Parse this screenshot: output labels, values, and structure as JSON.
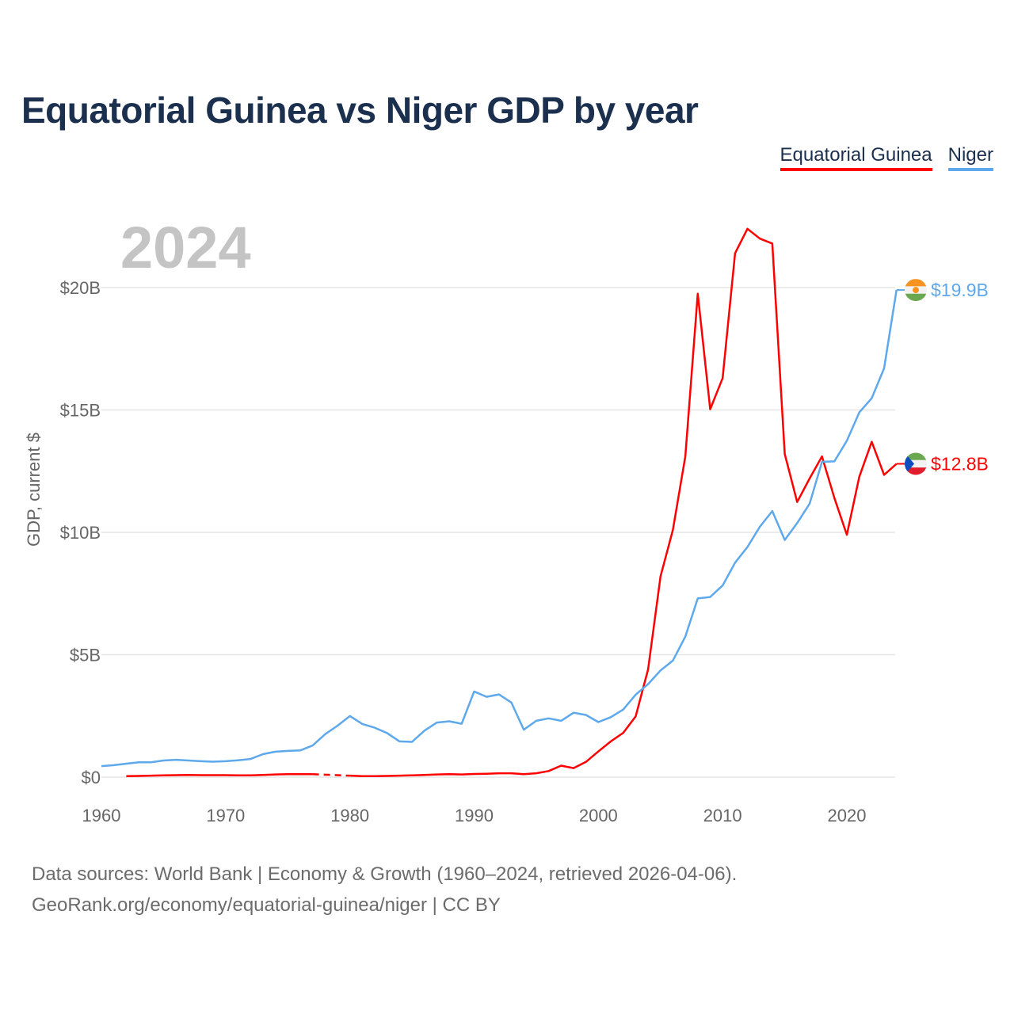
{
  "chart_data": {
    "type": "line",
    "title": "Equatorial Guinea vs Niger GDP by year",
    "ylabel": "GDP, current $",
    "xlabel": "",
    "year_label": "2024",
    "xlim": [
      1960,
      2024
    ],
    "ylim": [
      0,
      22.5
    ],
    "x_ticks": [
      1960,
      1970,
      1980,
      1990,
      2000,
      2010,
      2020
    ],
    "y_ticks": [
      {
        "v": 0,
        "label": "$0"
      },
      {
        "v": 5,
        "label": "$5B"
      },
      {
        "v": 10,
        "label": "$10B"
      },
      {
        "v": 15,
        "label": "$15B"
      },
      {
        "v": 20,
        "label": "$20B"
      }
    ],
    "grid": true,
    "legend_placement": "top-right",
    "x_start": 1960,
    "series": [
      {
        "name": "Equatorial Guinea",
        "color": "#ff0000",
        "end_label": "$12.8B",
        "values": [
          null,
          null,
          0.04,
          0.05,
          0.06,
          0.07,
          0.08,
          0.09,
          0.08,
          0.08,
          0.08,
          0.07,
          0.07,
          0.09,
          0.11,
          0.12,
          0.12,
          0.12,
          null,
          null,
          0.06,
          0.04,
          0.04,
          0.05,
          0.06,
          0.07,
          0.09,
          0.11,
          0.12,
          0.11,
          0.13,
          0.14,
          0.16,
          0.16,
          0.12,
          0.16,
          0.25,
          0.47,
          0.37,
          0.62,
          1.05,
          1.46,
          1.81,
          2.48,
          4.4,
          8.2,
          10.1,
          13.1,
          19.75,
          15.03,
          16.3,
          21.4,
          22.4,
          22.0,
          21.8,
          13.2,
          11.24,
          12.2,
          13.1,
          11.4,
          9.9,
          12.27,
          13.7,
          12.35,
          12.8
        ]
      },
      {
        "name": "Niger",
        "color": "#5ea8ec",
        "end_label": "$19.9B",
        "values": [
          0.45,
          0.49,
          0.55,
          0.61,
          0.61,
          0.68,
          0.71,
          0.68,
          0.65,
          0.63,
          0.65,
          0.69,
          0.74,
          0.94,
          1.04,
          1.07,
          1.09,
          1.29,
          1.75,
          2.1,
          2.5,
          2.17,
          2.02,
          1.8,
          1.46,
          1.44,
          1.9,
          2.23,
          2.28,
          2.18,
          3.5,
          3.28,
          3.38,
          3.05,
          1.94,
          2.3,
          2.4,
          2.3,
          2.63,
          2.54,
          2.25,
          2.45,
          2.76,
          3.37,
          3.8,
          4.36,
          4.76,
          5.74,
          7.3,
          7.36,
          7.83,
          8.76,
          9.4,
          10.23,
          10.87,
          9.69,
          10.38,
          11.17,
          12.88,
          12.9,
          13.74,
          14.9,
          15.48,
          16.7,
          19.9
        ]
      }
    ]
  },
  "footer": {
    "line1": "Data sources: World Bank | Economy & Growth (1960–2024, retrieved 2026-04-06).",
    "line2": "GeoRank.org/economy/equatorial-guinea/niger | CC BY"
  }
}
